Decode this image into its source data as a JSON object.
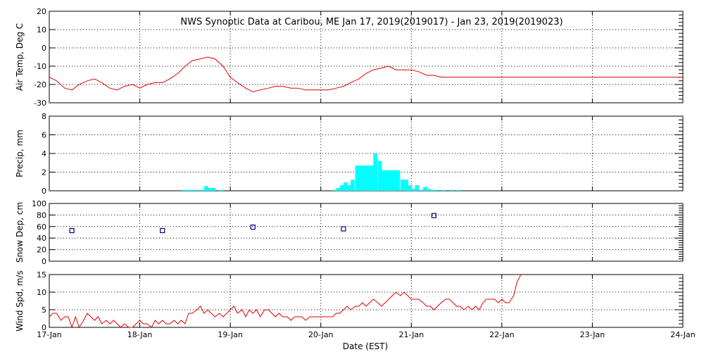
{
  "title": "NWS Synoptic Data at Caribou, ME   Jan 17, 2019(2019017) - Jan 23, 2019(2019023)",
  "xlabel": "Date (EST)",
  "x_ticks": [
    "17-Jan",
    "18-Jan",
    "19-Jan",
    "20-Jan",
    "21-Jan",
    "22-Jan",
    "23-Jan",
    "24-Jan"
  ],
  "colors": {
    "temp": "#e00000",
    "precip": "#00ffff",
    "snow": "#000080",
    "wind": "#e00000",
    "grid": "#000000"
  },
  "chart_data": [
    {
      "type": "line",
      "ylabel": "Air Temp, Deg C",
      "ylim": [
        -30,
        20
      ],
      "y_ticks": [
        20,
        10,
        0,
        -10,
        -20,
        -30
      ],
      "x_unit": "days since 17-Jan 00:00",
      "series": [
        {
          "color": "#e00000",
          "x": [
            0.0,
            0.08,
            0.17,
            0.25,
            0.33,
            0.42,
            0.5,
            0.58,
            0.67,
            0.75,
            0.83,
            0.92,
            1.0,
            1.08,
            1.17,
            1.25,
            1.33,
            1.42,
            1.5,
            1.58,
            1.67,
            1.75,
            1.83,
            1.92,
            2.0,
            2.08,
            2.17,
            2.25,
            2.33,
            2.42,
            2.5,
            2.58,
            2.67,
            2.75,
            2.83,
            2.92,
            3.0,
            3.08,
            3.17,
            3.25,
            3.33,
            3.42,
            3.5,
            3.58,
            3.67,
            3.75,
            3.83,
            3.92,
            4.0,
            4.08,
            4.17,
            4.25,
            4.33,
            4.5,
            4.67,
            4.83,
            5.0,
            5.5,
            6.0,
            6.5,
            7.0
          ],
          "values": [
            -16,
            -18,
            -22,
            -23,
            -20,
            -18,
            -17,
            -19,
            -22,
            -23,
            -21,
            -20,
            -22,
            -20,
            -19,
            -19,
            -17,
            -14,
            -10,
            -7,
            -6,
            -5,
            -6,
            -10,
            -16,
            -19,
            -22,
            -24,
            -23,
            -22,
            -21,
            -21,
            -22,
            -22,
            -23,
            -23,
            -23,
            -23,
            -22,
            -21,
            -19,
            -17,
            -14,
            -12,
            -11,
            -10,
            -12,
            -12,
            -12,
            -13,
            -15,
            -15,
            -16,
            -16,
            -16,
            -16,
            -16,
            -16,
            -16,
            -16,
            -16
          ]
        }
      ]
    },
    {
      "type": "bar",
      "ylabel": "Precip, mm",
      "ylim": [
        0,
        8
      ],
      "y_ticks": [
        8,
        6,
        4,
        2,
        0
      ],
      "x_unit": "days since 17-Jan 00:00 (bar start)",
      "bar_width_days": 0.042,
      "x": [
        1.46,
        1.5,
        1.54,
        1.58,
        1.63,
        1.67,
        1.71,
        1.75,
        1.79,
        1.88,
        3.13,
        3.17,
        3.21,
        3.25,
        3.29,
        3.33,
        3.38,
        3.42,
        3.46,
        3.5,
        3.54,
        3.58,
        3.63,
        3.67,
        3.71,
        3.75,
        3.79,
        3.83,
        3.88,
        3.92,
        3.96,
        4.0,
        4.04,
        4.08,
        4.13,
        4.17,
        4.21,
        4.25,
        4.33,
        4.42,
        4.5
      ],
      "values": [
        0.1,
        0.1,
        0.1,
        0.1,
        0.1,
        0.1,
        0.5,
        0.3,
        0.3,
        0.1,
        0.1,
        0.3,
        0.6,
        0.9,
        0.6,
        1.2,
        2.7,
        2.7,
        2.7,
        2.7,
        2.7,
        4.0,
        3.2,
        2.2,
        2.2,
        2.2,
        2.2,
        2.2,
        1.2,
        1.2,
        0.6,
        0.2,
        0.6,
        0.1,
        0.4,
        0.2,
        0.1,
        0.1,
        0.1,
        0.1,
        0.1
      ]
    },
    {
      "type": "scatter",
      "ylabel": "Snow Dep, cm",
      "ylim": [
        0,
        100
      ],
      "y_ticks": [
        100,
        80,
        60,
        40,
        20,
        0
      ],
      "x_unit": "days since 17-Jan 00:00",
      "x": [
        0.25,
        1.25,
        2.25,
        3.25,
        4.25
      ],
      "values": [
        53,
        53,
        59,
        56,
        79
      ]
    },
    {
      "type": "line",
      "ylabel": "Wind Spd, m/s",
      "ylim": [
        0,
        15
      ],
      "y_ticks": [
        15,
        10,
        5,
        0
      ],
      "x_unit": "days since 17-Jan 00:00",
      "series": [
        {
          "color": "#e00000",
          "x": [
            0.0,
            0.04,
            0.08,
            0.13,
            0.17,
            0.21,
            0.25,
            0.29,
            0.33,
            0.38,
            0.42,
            0.46,
            0.5,
            0.54,
            0.58,
            0.63,
            0.67,
            0.71,
            0.75,
            0.79,
            0.83,
            0.88,
            0.92,
            0.96,
            1.0,
            1.04,
            1.08,
            1.13,
            1.17,
            1.21,
            1.25,
            1.29,
            1.33,
            1.38,
            1.42,
            1.46,
            1.5,
            1.54,
            1.58,
            1.63,
            1.67,
            1.71,
            1.75,
            1.79,
            1.83,
            1.88,
            1.92,
            1.96,
            2.0,
            2.04,
            2.08,
            2.13,
            2.17,
            2.21,
            2.25,
            2.29,
            2.33,
            2.38,
            2.42,
            2.46,
            2.5,
            2.54,
            2.58,
            2.63,
            2.67,
            2.71,
            2.75,
            2.79,
            2.83,
            2.88,
            2.92,
            2.96,
            3.0,
            3.04,
            3.08,
            3.13,
            3.17,
            3.21,
            3.25,
            3.29,
            3.33,
            3.38,
            3.42,
            3.46,
            3.5,
            3.54,
            3.58,
            3.63,
            3.67,
            3.71,
            3.75,
            3.79,
            3.83,
            3.88,
            3.92,
            3.96,
            4.0,
            4.04,
            4.08,
            4.13,
            4.17,
            4.21,
            4.25,
            4.29,
            4.33,
            4.38,
            4.42,
            4.46,
            4.5,
            4.54,
            4.58,
            4.63,
            4.67,
            4.71,
            4.75,
            4.79,
            4.83,
            4.88,
            4.92,
            4.96,
            5.0,
            5.04,
            5.08,
            5.13,
            5.17,
            5.21
          ],
          "values": [
            3,
            4,
            4,
            2,
            3,
            3,
            0,
            3,
            0,
            2,
            4,
            3,
            2,
            3,
            1,
            2,
            1,
            2,
            1,
            0,
            1,
            0,
            0,
            1,
            2,
            1,
            1,
            0,
            2,
            1,
            2,
            1,
            1,
            2,
            1,
            2,
            1,
            4,
            4,
            5,
            6,
            4,
            5,
            4,
            3,
            4,
            3,
            4,
            5,
            6,
            4,
            5,
            3,
            5,
            4,
            5,
            3,
            5,
            5,
            4,
            3,
            4,
            3,
            3,
            2,
            3,
            3,
            3,
            2,
            3,
            3,
            3,
            3,
            3,
            3,
            3,
            4,
            4,
            5,
            6,
            5,
            6,
            6,
            7,
            6,
            7,
            8,
            7,
            6,
            7,
            8,
            9,
            10,
            9,
            10,
            9,
            8,
            8,
            8,
            7,
            6,
            6,
            5,
            6,
            7,
            8,
            8,
            7,
            6,
            6,
            5,
            6,
            5,
            6,
            5,
            7,
            8,
            8,
            8,
            7,
            8,
            7,
            7,
            9,
            13,
            15
          ]
        }
      ]
    }
  ]
}
